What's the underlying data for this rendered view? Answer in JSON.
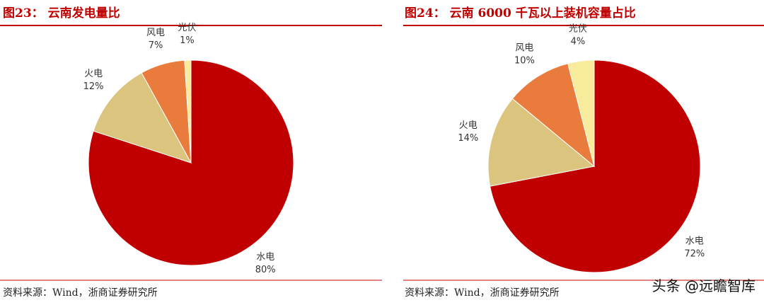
{
  "chart_data": [
    {
      "type": "pie",
      "title": "图23：  云南发电量比",
      "source": "资料来源：Wind，浙商证券研究所",
      "categories": [
        "水电",
        "火电",
        "风电",
        "光伏"
      ],
      "values": [
        80,
        12,
        7,
        1
      ],
      "value_labels": [
        "80%",
        "12%",
        "7%",
        "1%"
      ],
      "colors": [
        "#c00000",
        "#dbc47d",
        "#e97b3c",
        "#f8eb9c"
      ]
    },
    {
      "type": "pie",
      "title": "图24：  云南 6000 千瓦以上装机容量占比",
      "source": "资料来源：Wind，浙商证券研究所",
      "categories": [
        "水电",
        "火电",
        "风电",
        "光伏"
      ],
      "values": [
        72,
        14,
        10,
        4
      ],
      "value_labels": [
        "72%",
        "14%",
        "10%",
        "4%"
      ],
      "colors": [
        "#c00000",
        "#dbc47d",
        "#e97b3c",
        "#f8eb9c"
      ]
    }
  ],
  "watermark": "头条 @远瞻智库"
}
